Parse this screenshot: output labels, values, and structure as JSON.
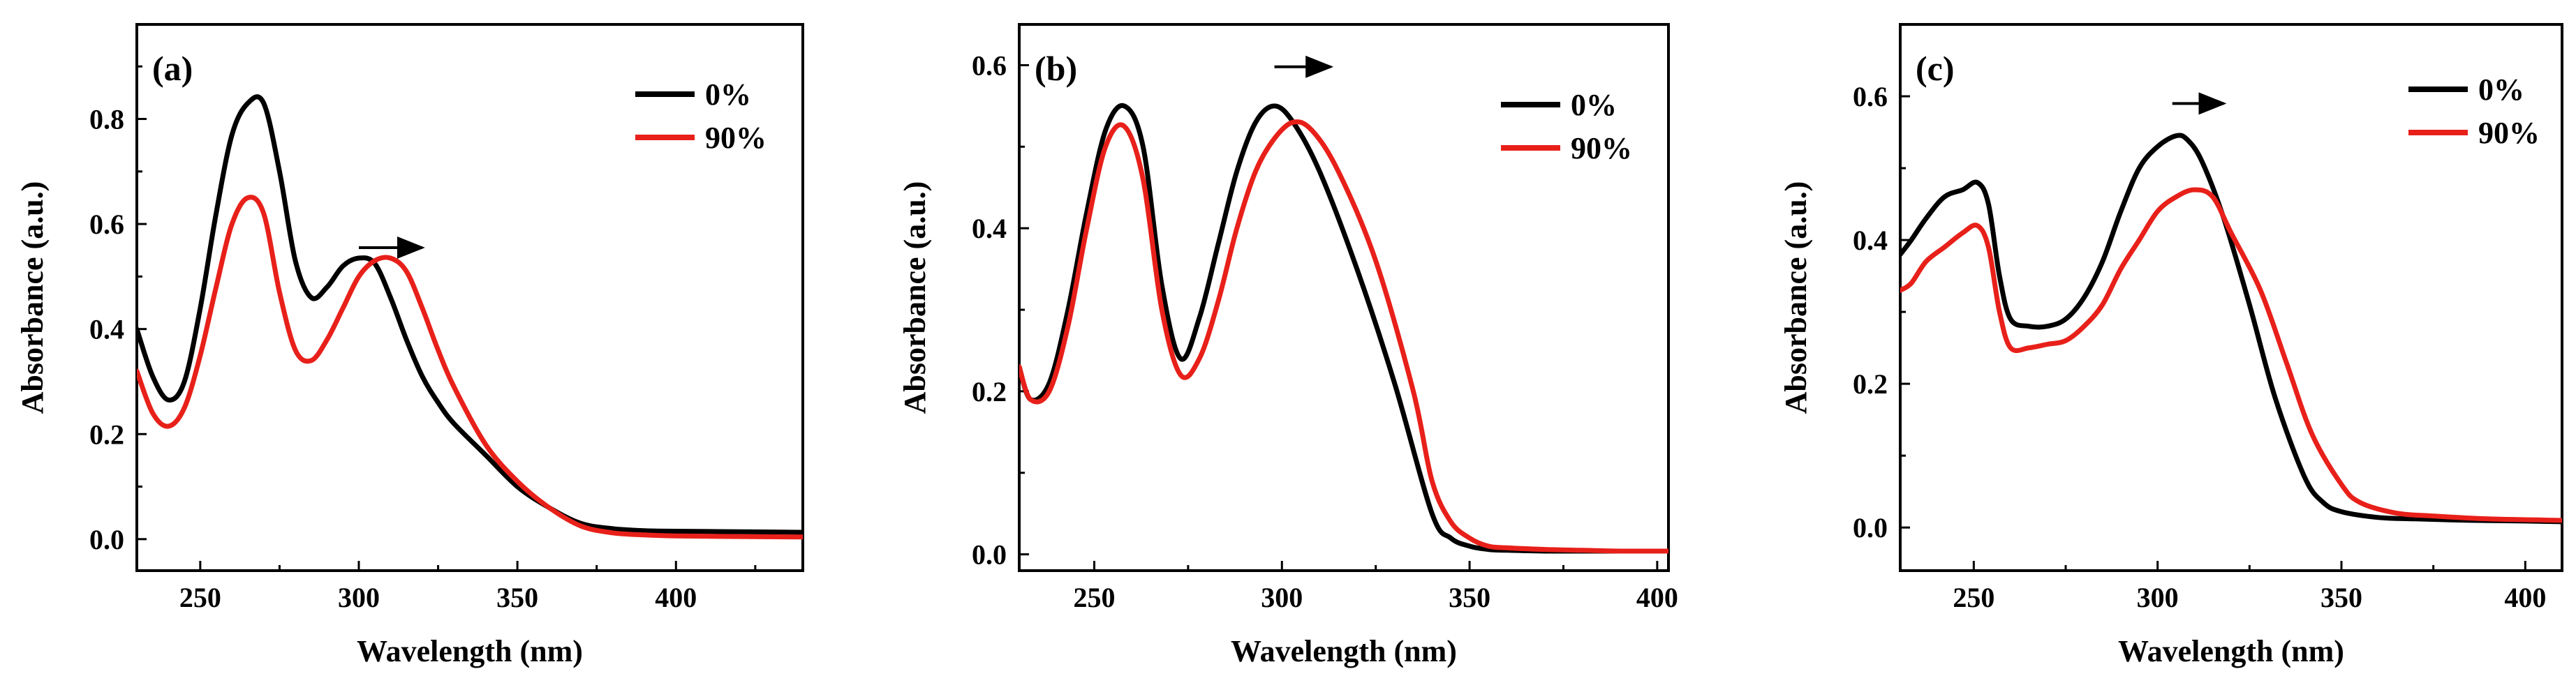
{
  "chart_data": [
    {
      "type": "line",
      "panel_label": "(a)",
      "xlabel": "Wavelength (nm)",
      "ylabel": "Absorbance (a.u.)",
      "xlim": [
        230,
        440
      ],
      "ylim": [
        -0.06,
        0.98
      ],
      "xticks": [
        250,
        300,
        350,
        400
      ],
      "yticks": [
        0.0,
        0.2,
        0.4,
        0.6,
        0.8
      ],
      "ytick_labels": [
        "0.0",
        "0.2",
        "0.4",
        "0.6",
        "0.8"
      ],
      "xtick_labels": [
        "250",
        "300",
        "350",
        "400"
      ],
      "legend_position": "top-right",
      "arrow": {
        "from": [
          300,
          0.555
        ],
        "to": [
          320,
          0.555
        ]
      },
      "series": [
        {
          "name": "0%",
          "color": "#000000",
          "x": [
            230,
            235,
            240,
            245,
            250,
            255,
            260,
            265,
            270,
            275,
            280,
            285,
            290,
            295,
            300,
            305,
            310,
            315,
            320,
            325,
            330,
            340,
            350,
            360,
            370,
            380,
            390,
            400,
            420,
            440
          ],
          "y": [
            0.4,
            0.31,
            0.265,
            0.3,
            0.44,
            0.62,
            0.77,
            0.83,
            0.83,
            0.7,
            0.53,
            0.46,
            0.48,
            0.52,
            0.535,
            0.525,
            0.46,
            0.38,
            0.31,
            0.26,
            0.22,
            0.16,
            0.1,
            0.06,
            0.03,
            0.02,
            0.016,
            0.015,
            0.014,
            0.013
          ]
        },
        {
          "name": "90%",
          "color": "#e8201a",
          "x": [
            230,
            235,
            240,
            245,
            250,
            255,
            260,
            265,
            270,
            275,
            280,
            285,
            290,
            295,
            300,
            305,
            310,
            315,
            320,
            325,
            330,
            340,
            350,
            360,
            370,
            380,
            390,
            400,
            420,
            440
          ],
          "y": [
            0.32,
            0.24,
            0.215,
            0.25,
            0.35,
            0.48,
            0.6,
            0.65,
            0.62,
            0.47,
            0.36,
            0.34,
            0.38,
            0.44,
            0.5,
            0.53,
            0.535,
            0.51,
            0.44,
            0.36,
            0.29,
            0.18,
            0.11,
            0.06,
            0.025,
            0.012,
            0.008,
            0.006,
            0.005,
            0.004
          ]
        }
      ]
    },
    {
      "type": "line",
      "panel_label": "(b)",
      "xlabel": "Wavelength (nm)",
      "ylabel": "Absorbance (a.u.)",
      "xlim": [
        230,
        403
      ],
      "ylim": [
        -0.02,
        0.65
      ],
      "xticks": [
        250,
        300,
        350,
        400
      ],
      "yticks": [
        0.0,
        0.2,
        0.4,
        0.6
      ],
      "ytick_labels": [
        "0.0",
        "0.2",
        "0.4",
        "0.6"
      ],
      "xtick_labels": [
        "250",
        "300",
        "350",
        "400"
      ],
      "legend_position": "top-right",
      "arrow": {
        "from": [
          298,
          0.598
        ],
        "to": [
          313,
          0.598
        ]
      },
      "series": [
        {
          "name": "0%",
          "color": "#000000",
          "x": [
            230,
            233,
            238,
            243,
            248,
            253,
            258,
            263,
            268,
            273,
            278,
            283,
            288,
            293,
            298,
            303,
            310,
            320,
            330,
            340,
            345,
            350,
            355,
            360,
            370,
            380,
            390,
            403
          ],
          "y": [
            0.23,
            0.19,
            0.21,
            0.3,
            0.42,
            0.52,
            0.55,
            0.5,
            0.33,
            0.24,
            0.29,
            0.38,
            0.47,
            0.53,
            0.55,
            0.53,
            0.47,
            0.35,
            0.21,
            0.05,
            0.02,
            0.01,
            0.006,
            0.005,
            0.004,
            0.004,
            0.004,
            0.004
          ]
        },
        {
          "name": "90%",
          "color": "#e8201a",
          "x": [
            230,
            233,
            238,
            243,
            248,
            253,
            258,
            263,
            268,
            273,
            278,
            283,
            288,
            293,
            298,
            303,
            308,
            315,
            325,
            335,
            340,
            345,
            350,
            355,
            360,
            370,
            380,
            390,
            403
          ],
          "y": [
            0.23,
            0.19,
            0.2,
            0.28,
            0.4,
            0.5,
            0.525,
            0.46,
            0.3,
            0.22,
            0.24,
            0.31,
            0.4,
            0.47,
            0.51,
            0.53,
            0.52,
            0.47,
            0.36,
            0.2,
            0.09,
            0.04,
            0.02,
            0.01,
            0.008,
            0.006,
            0.005,
            0.004,
            0.004
          ]
        }
      ]
    },
    {
      "type": "line",
      "panel_label": "(c)",
      "xlabel": "Wavelength (nm)",
      "ylabel": "Absorbance (a.u.)",
      "xlim": [
        230,
        410
      ],
      "ylim": [
        -0.06,
        0.7
      ],
      "xticks": [
        250,
        300,
        350,
        400
      ],
      "yticks": [
        0.0,
        0.2,
        0.4,
        0.6
      ],
      "ytick_labels": [
        "0.0",
        "0.2",
        "0.4",
        "0.6"
      ],
      "xtick_labels": [
        "250",
        "300",
        "350",
        "400"
      ],
      "legend_position": "top-right",
      "arrow": {
        "from": [
          304,
          0.59
        ],
        "to": [
          318,
          0.59
        ]
      },
      "series": [
        {
          "name": "0%",
          "color": "#000000",
          "x": [
            230,
            233,
            237,
            242,
            247,
            251,
            254,
            257,
            260,
            265,
            270,
            275,
            280,
            285,
            290,
            295,
            300,
            305,
            308,
            312,
            318,
            325,
            332,
            340,
            345,
            350,
            360,
            370,
            385,
            400,
            410
          ],
          "y": [
            0.38,
            0.4,
            0.43,
            0.46,
            0.47,
            0.48,
            0.45,
            0.35,
            0.29,
            0.28,
            0.28,
            0.29,
            0.32,
            0.37,
            0.44,
            0.5,
            0.53,
            0.545,
            0.54,
            0.51,
            0.43,
            0.31,
            0.18,
            0.07,
            0.035,
            0.022,
            0.014,
            0.012,
            0.01,
            0.009,
            0.008
          ]
        },
        {
          "name": "90%",
          "color": "#e8201a",
          "x": [
            230,
            233,
            237,
            242,
            247,
            251,
            254,
            257,
            260,
            265,
            270,
            275,
            280,
            285,
            290,
            295,
            300,
            305,
            310,
            315,
            320,
            328,
            335,
            342,
            350,
            355,
            365,
            375,
            390,
            410
          ],
          "y": [
            0.33,
            0.34,
            0.37,
            0.39,
            0.41,
            0.42,
            0.39,
            0.3,
            0.25,
            0.25,
            0.255,
            0.26,
            0.28,
            0.31,
            0.36,
            0.4,
            0.44,
            0.46,
            0.47,
            0.46,
            0.41,
            0.33,
            0.23,
            0.13,
            0.06,
            0.035,
            0.02,
            0.016,
            0.012,
            0.01
          ]
        }
      ]
    }
  ]
}
